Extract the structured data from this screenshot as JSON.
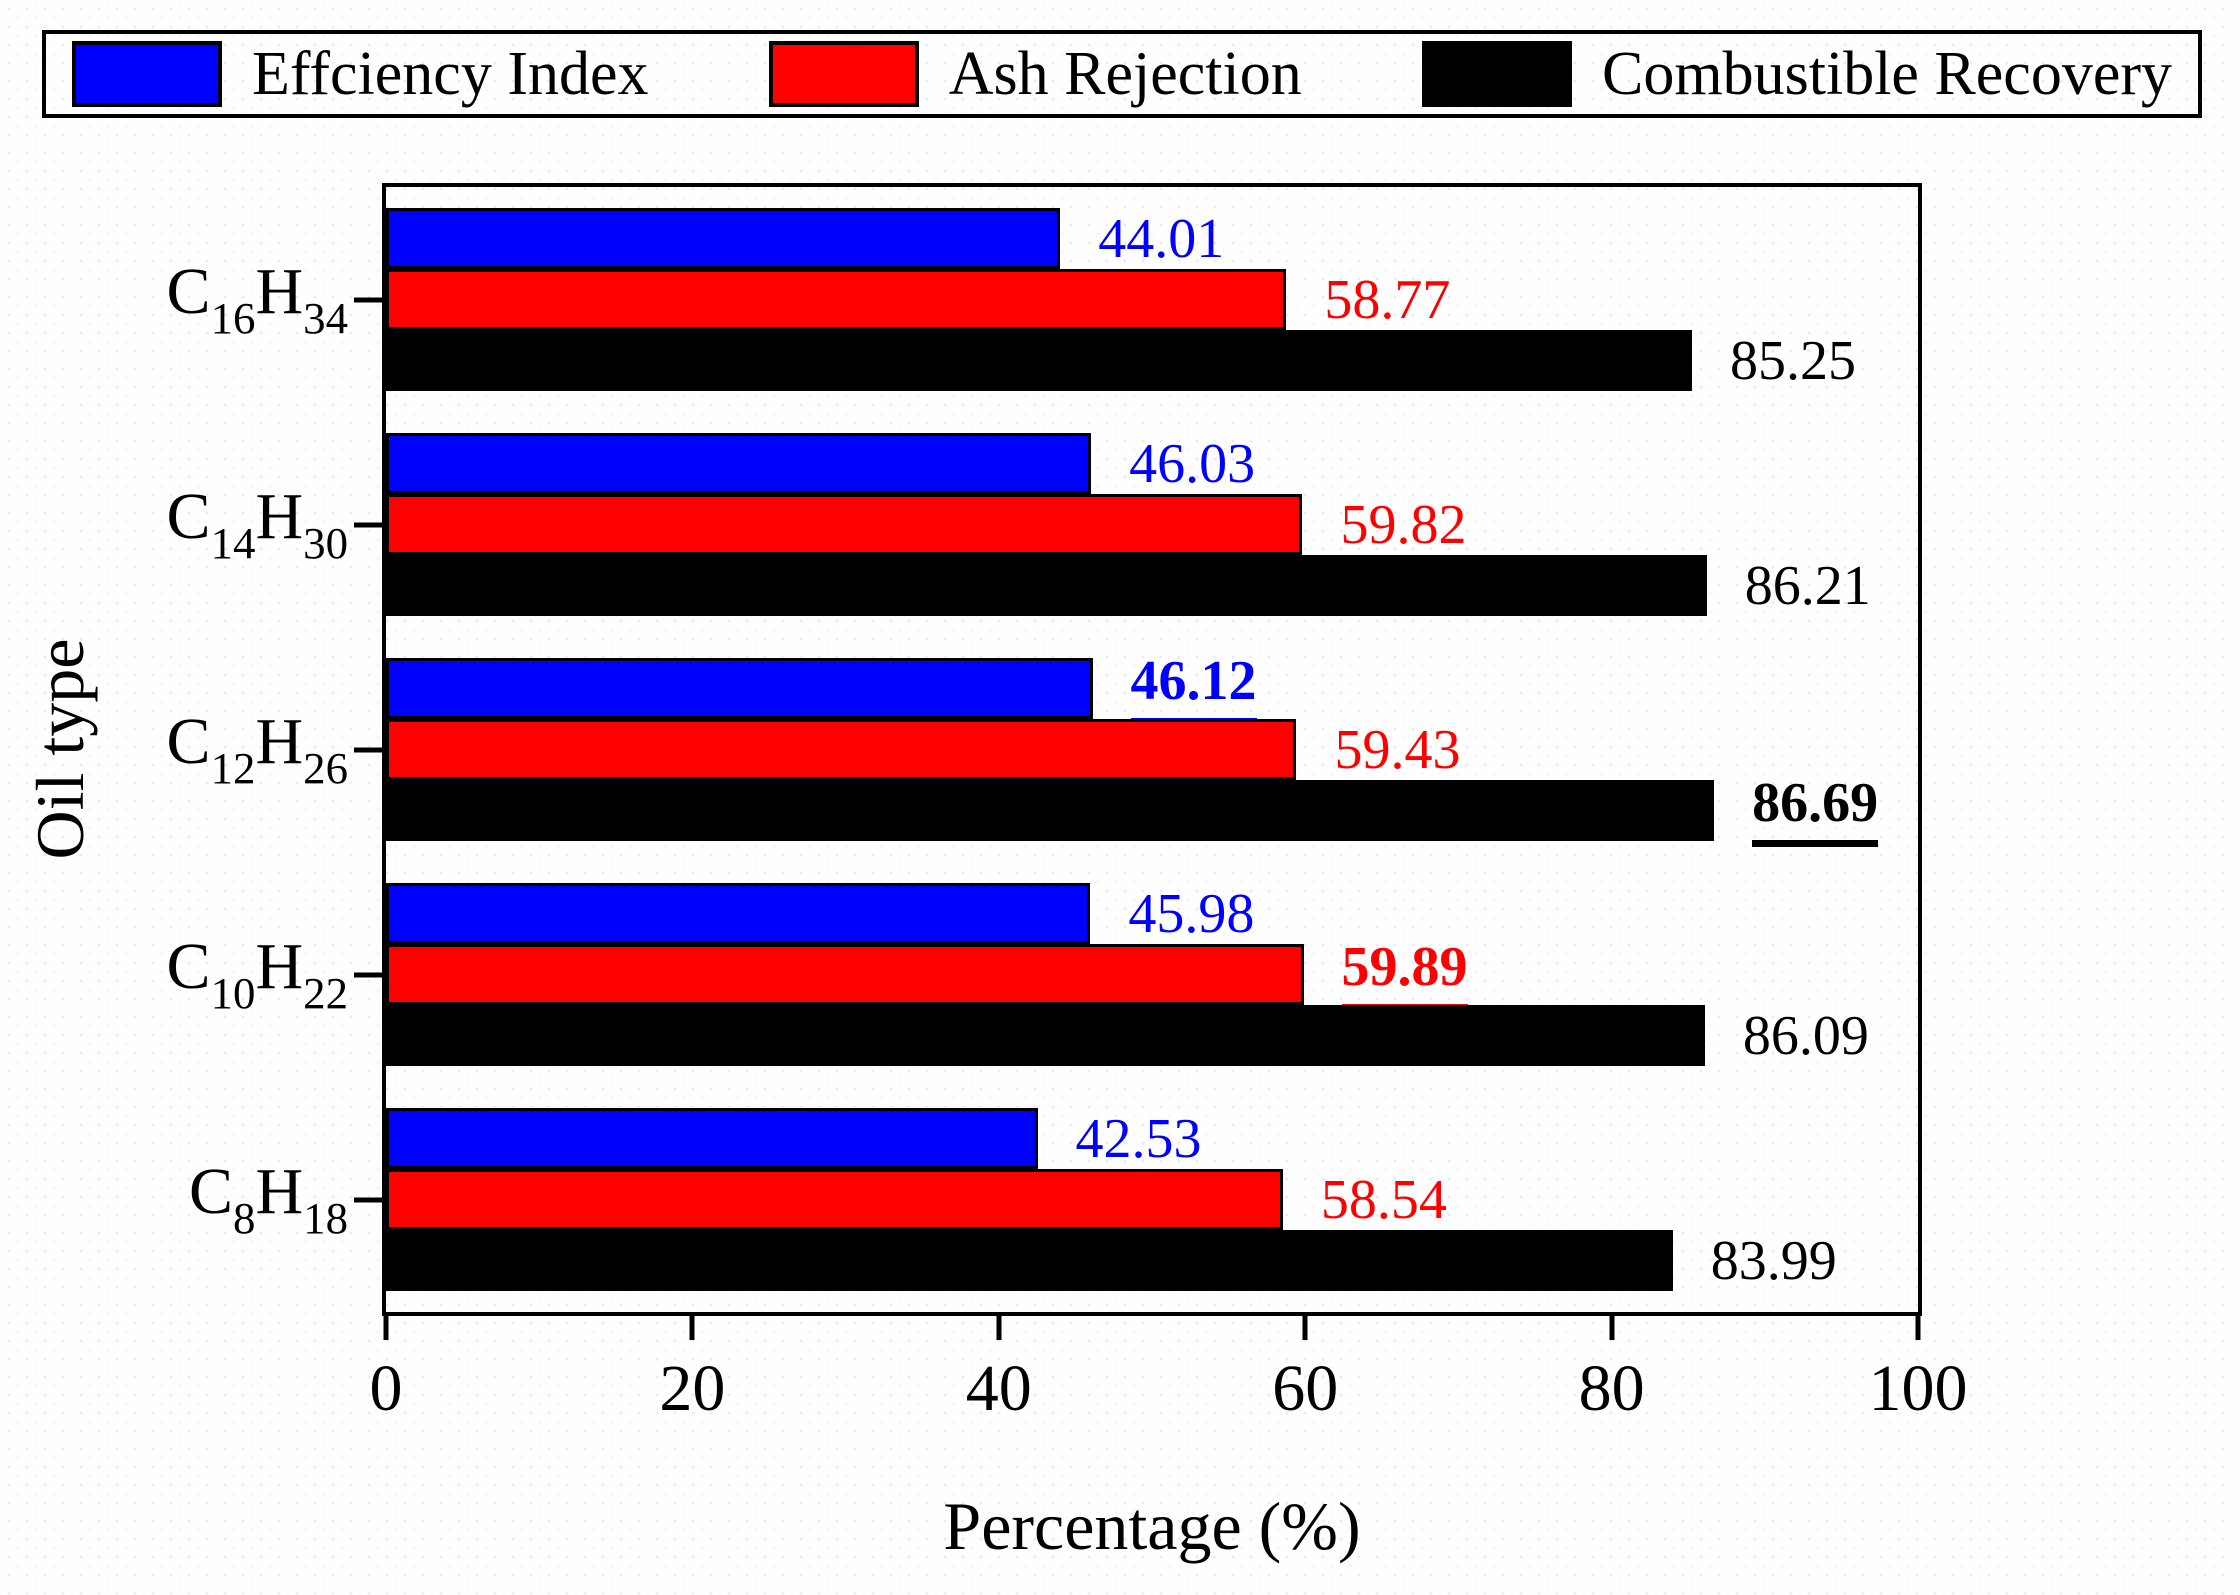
{
  "legend": {
    "items": [
      {
        "label": "Effciency Index",
        "color": "#0000fe"
      },
      {
        "label": "Ash Rejection",
        "color": "#fe0000"
      },
      {
        "label": "Combustible Recovery",
        "color": "#000000"
      }
    ]
  },
  "chart_data": {
    "type": "bar",
    "orientation": "horizontal",
    "title": "",
    "xlabel": "Percentage (%)",
    "ylabel": "Oil type",
    "xlim": [
      0,
      100
    ],
    "x_ticks": [
      0,
      20,
      40,
      60,
      80,
      100
    ],
    "grid": false,
    "legend_position": "top",
    "bar_outline_color": "#000000",
    "categories": [
      {
        "text": "C16H34",
        "c": "C",
        "c_sub": "16",
        "h": "H",
        "h_sub": "34"
      },
      {
        "text": "C14H30",
        "c": "C",
        "c_sub": "14",
        "h": "H",
        "h_sub": "30"
      },
      {
        "text": "C12H26",
        "c": "C",
        "c_sub": "12",
        "h": "H",
        "h_sub": "26"
      },
      {
        "text": "C10H22",
        "c": "C",
        "c_sub": "10",
        "h": "H",
        "h_sub": "22"
      },
      {
        "text": "C8H18",
        "c": "C",
        "c_sub": "8",
        "h": "H",
        "h_sub": "18"
      }
    ],
    "series": [
      {
        "name": "Effciency Index",
        "color": "#0000fe",
        "values": [
          44.01,
          46.03,
          46.12,
          45.98,
          42.53
        ],
        "labels": [
          "44.01",
          "46.03",
          "46.12",
          "45.98",
          "42.53"
        ],
        "emphasized": [
          false,
          false,
          true,
          false,
          false
        ]
      },
      {
        "name": "Ash Rejection",
        "color": "#fe0000",
        "values": [
          58.77,
          59.82,
          59.43,
          59.89,
          58.54
        ],
        "labels": [
          "58.77",
          "59.82",
          "59.43",
          "59.89",
          "58.54"
        ],
        "emphasized": [
          false,
          false,
          false,
          true,
          false
        ]
      },
      {
        "name": "Combustible Recovery",
        "color": "#000000",
        "values": [
          85.25,
          86.21,
          86.69,
          86.09,
          83.99
        ],
        "labels": [
          "85.25",
          "86.21",
          "86.69",
          "86.09",
          "83.99"
        ],
        "emphasized": [
          false,
          false,
          true,
          false,
          false
        ]
      }
    ]
  }
}
